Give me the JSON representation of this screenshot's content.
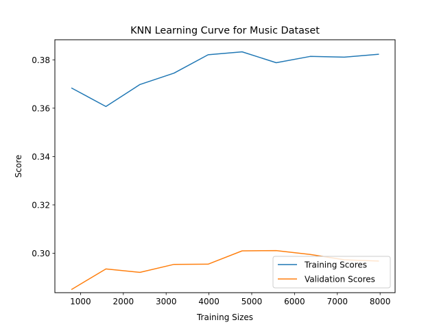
{
  "chart_data": {
    "type": "line",
    "title": "KNN Learning Curve for Music Dataset",
    "xlabel": "Training Sizes",
    "ylabel": "Score",
    "xlim": [
      400,
      8350
    ],
    "ylim": [
      0.2837,
      0.3883
    ],
    "xticks": [
      1000,
      2000,
      3000,
      4000,
      5000,
      6000,
      7000,
      8000
    ],
    "yticks": [
      0.3,
      0.32,
      0.34,
      0.36,
      0.38
    ],
    "grid": false,
    "legend_position": "lower-right",
    "x": [
      796,
      1592,
      2388,
      3184,
      3980,
      4776,
      5572,
      6368,
      7164,
      7960
    ],
    "series": [
      {
        "name": "Training Scores",
        "color": "#1f77b4",
        "values": [
          0.3683,
          0.3607,
          0.3698,
          0.3745,
          0.3821,
          0.3833,
          0.3788,
          0.3814,
          0.3811,
          0.3823
        ]
      },
      {
        "name": "Validation Scores",
        "color": "#ff7f0e",
        "values": [
          0.2851,
          0.2935,
          0.2921,
          0.2954,
          0.2955,
          0.301,
          0.3011,
          0.2995,
          0.2973,
          0.2968
        ]
      }
    ]
  }
}
